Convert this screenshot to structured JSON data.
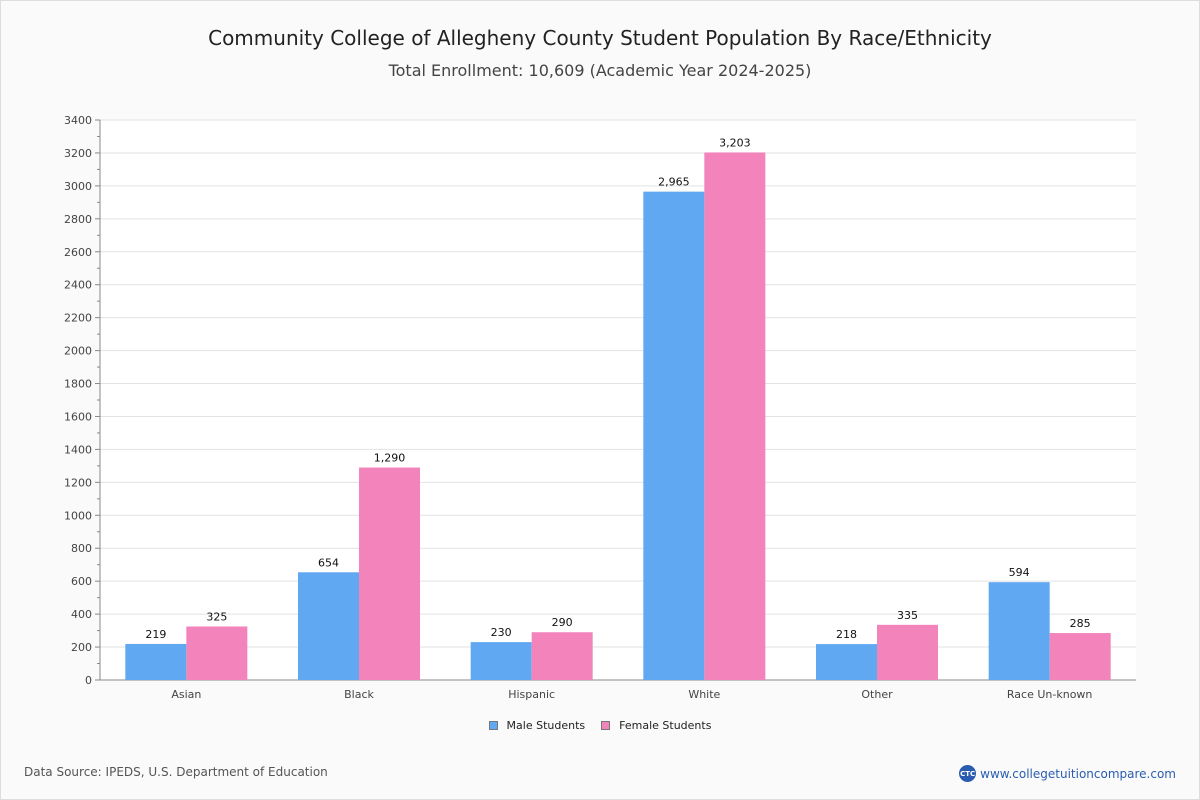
{
  "chart_data": {
    "type": "bar",
    "title": "Community College of Allegheny County Student Population By Race/Ethnicity",
    "subtitle": "Total Enrollment: 10,609 (Academic Year 2024-2025)",
    "xlabel": "",
    "ylabel": "",
    "ylim": [
      0,
      3400
    ],
    "yticks": [
      0,
      200,
      400,
      600,
      800,
      1000,
      1200,
      1400,
      1600,
      1800,
      2000,
      2200,
      2400,
      2600,
      2800,
      3000,
      3200,
      3400
    ],
    "grid": true,
    "legend_position": "bottom-center",
    "categories": [
      "Asian",
      "Black",
      "Hispanic",
      "White",
      "Other",
      "Race Un-known"
    ],
    "series": [
      {
        "name": "Male Students",
        "color": "#60a8f2",
        "values": [
          219,
          654,
          230,
          2965,
          218,
          594
        ],
        "labels": [
          "219",
          "654",
          "230",
          "2,965",
          "218",
          "594"
        ]
      },
      {
        "name": "Female Students",
        "color": "#f283bb",
        "values": [
          325,
          1290,
          290,
          3203,
          335,
          285
        ],
        "labels": [
          "325",
          "1,290",
          "290",
          "3,203",
          "335",
          "285"
        ]
      }
    ]
  },
  "footer": {
    "source": "Data Source: IPEDS, U.S. Department of Education",
    "brand_logo": "CTC",
    "brand_url": "www.collegetuitioncompare.com"
  }
}
